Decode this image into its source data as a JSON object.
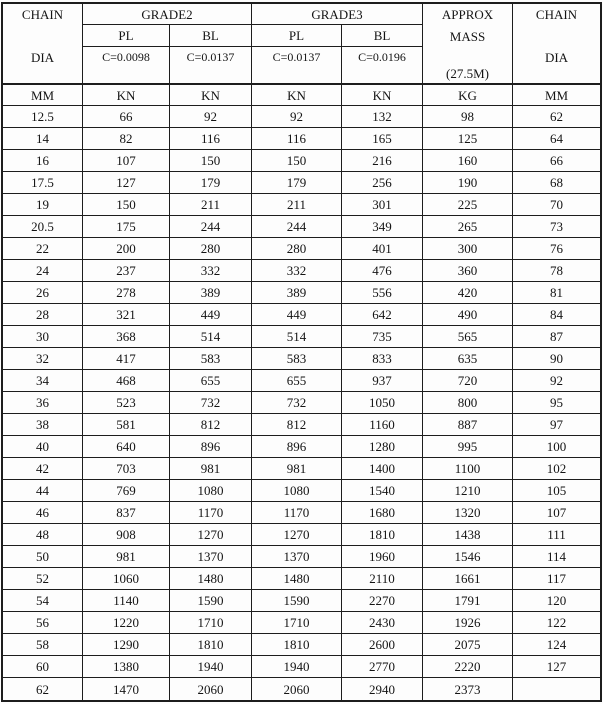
{
  "table": {
    "header": {
      "left": {
        "line1": "CHAIN",
        "line2": "DIA"
      },
      "grade2": {
        "title": "GRADE2",
        "pl": "PL",
        "bl": "BL",
        "pl_c": "C=0.0098",
        "bl_c": "C=0.0137"
      },
      "grade3": {
        "title": "GRADE3",
        "pl": "PL",
        "bl": "BL",
        "pl_c": "C=0.0137",
        "bl_c": "C=0.0196"
      },
      "mass": {
        "line1": "APPROX",
        "line2": "MASS",
        "line3": "(27.5M)"
      },
      "right": {
        "line1": "CHAIN",
        "line2": "DIA"
      }
    },
    "units": [
      "MM",
      "KN",
      "KN",
      "KN",
      "KN",
      "KG",
      "MM"
    ],
    "rows": [
      [
        "12.5",
        "66",
        "92",
        "92",
        "132",
        "98",
        "62"
      ],
      [
        "14",
        "82",
        "116",
        "116",
        "165",
        "125",
        "64"
      ],
      [
        "16",
        "107",
        "150",
        "150",
        "216",
        "160",
        "66"
      ],
      [
        "17.5",
        "127",
        "179",
        "179",
        "256",
        "190",
        "68"
      ],
      [
        "19",
        "150",
        "211",
        "211",
        "301",
        "225",
        "70"
      ],
      [
        "20.5",
        "175",
        "244",
        "244",
        "349",
        "265",
        "73"
      ],
      [
        "22",
        "200",
        "280",
        "280",
        "401",
        "300",
        "76"
      ],
      [
        "24",
        "237",
        "332",
        "332",
        "476",
        "360",
        "78"
      ],
      [
        "26",
        "278",
        "389",
        "389",
        "556",
        "420",
        "81"
      ],
      [
        "28",
        "321",
        "449",
        "449",
        "642",
        "490",
        "84"
      ],
      [
        "30",
        "368",
        "514",
        "514",
        "735",
        "565",
        "87"
      ],
      [
        "32",
        "417",
        "583",
        "583",
        "833",
        "635",
        "90"
      ],
      [
        "34",
        "468",
        "655",
        "655",
        "937",
        "720",
        "92"
      ],
      [
        "36",
        "523",
        "732",
        "732",
        "1050",
        "800",
        "95"
      ],
      [
        "38",
        "581",
        "812",
        "812",
        "1160",
        "887",
        "97"
      ],
      [
        "40",
        "640",
        "896",
        "896",
        "1280",
        "995",
        "100"
      ],
      [
        "42",
        "703",
        "981",
        "981",
        "1400",
        "1100",
        "102"
      ],
      [
        "44",
        "769",
        "1080",
        "1080",
        "1540",
        "1210",
        "105"
      ],
      [
        "46",
        "837",
        "1170",
        "1170",
        "1680",
        "1320",
        "107"
      ],
      [
        "48",
        "908",
        "1270",
        "1270",
        "1810",
        "1438",
        "111"
      ],
      [
        "50",
        "981",
        "1370",
        "1370",
        "1960",
        "1546",
        "114"
      ],
      [
        "52",
        "1060",
        "1480",
        "1480",
        "2110",
        "1661",
        "117"
      ],
      [
        "54",
        "1140",
        "1590",
        "1590",
        "2270",
        "1791",
        "120"
      ],
      [
        "56",
        "1220",
        "1710",
        "1710",
        "2430",
        "1926",
        "122"
      ],
      [
        "58",
        "1290",
        "1810",
        "1810",
        "2600",
        "2075",
        "124"
      ],
      [
        "60",
        "1380",
        "1940",
        "1940",
        "2770",
        "2220",
        "127"
      ],
      [
        "62",
        "1470",
        "2060",
        "2060",
        "2940",
        "2373",
        ""
      ]
    ]
  },
  "colors": {
    "border": "#1d1d1d",
    "background": "#fdfdfd",
    "text": "#141414"
  }
}
